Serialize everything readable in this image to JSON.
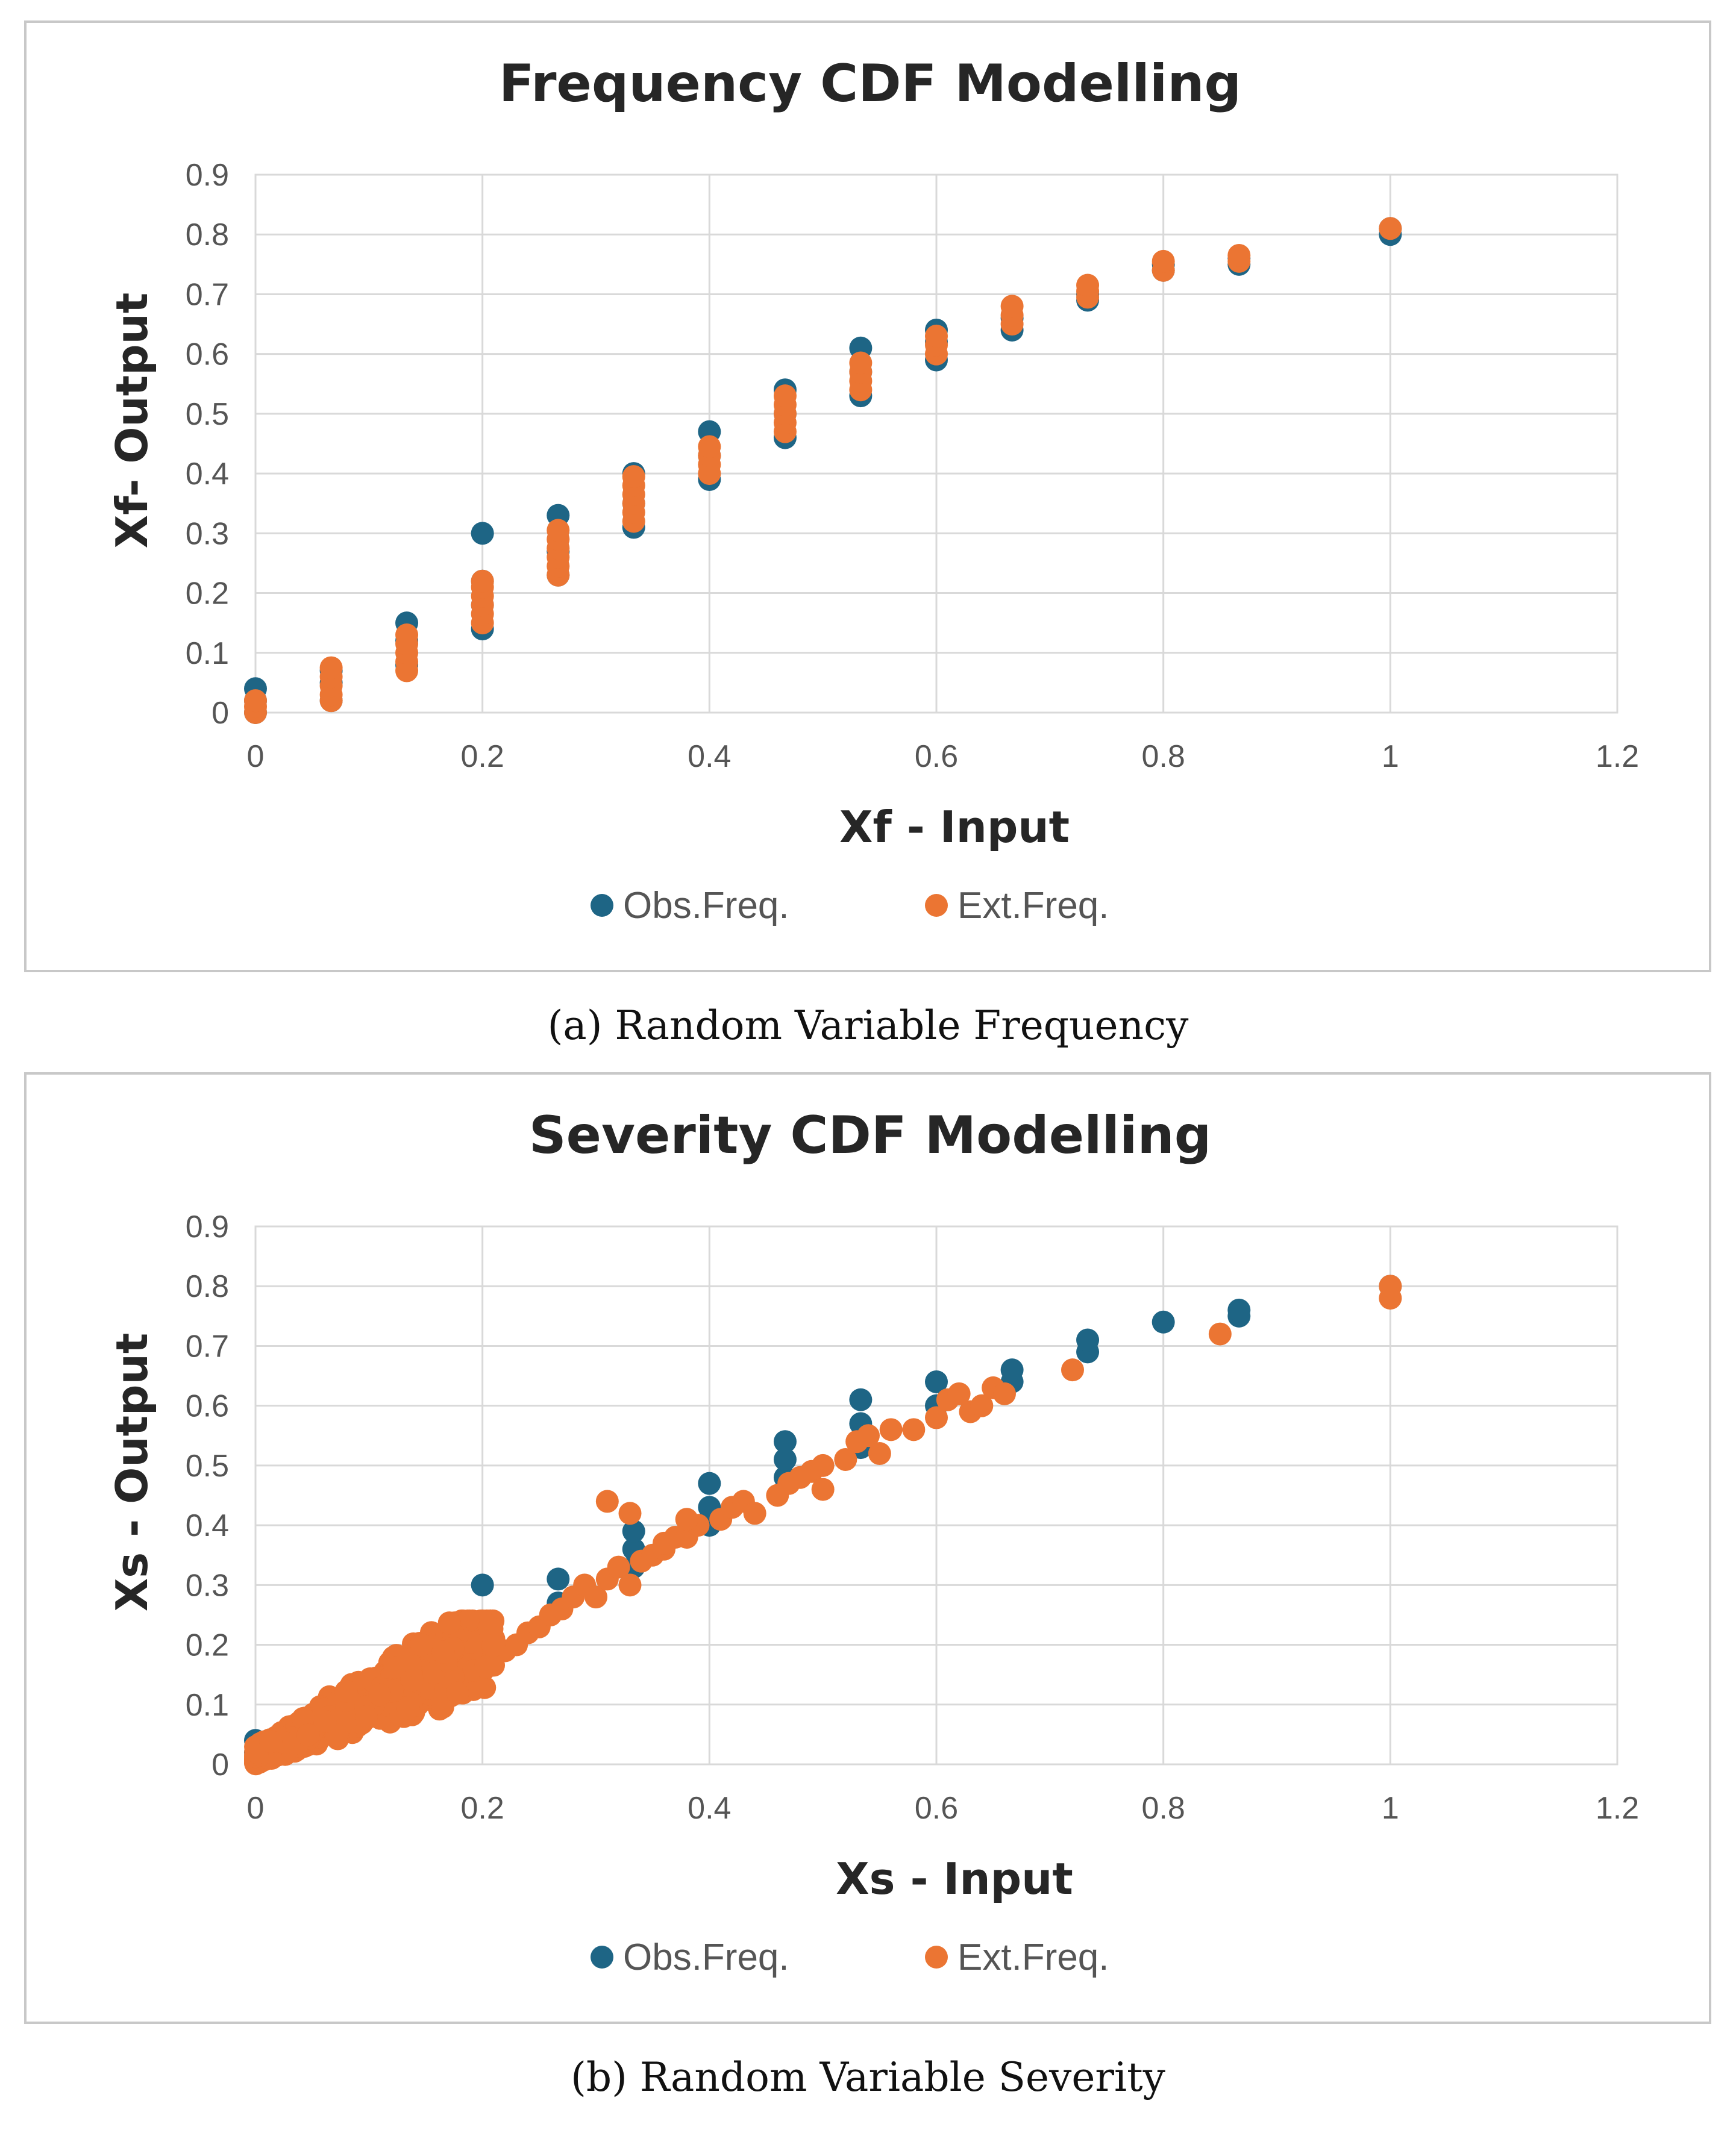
{
  "colors": {
    "obs": "#1e6585",
    "ext": "#eb7533"
  },
  "chart_data": [
    {
      "type": "scatter",
      "title": "Frequency CDF Modelling",
      "xlabel": "Xf - Input",
      "ylabel": "Xf- Output",
      "xlim": [
        0,
        1.2
      ],
      "ylim": [
        0,
        0.9
      ],
      "xticks": [
        "0",
        "0.2",
        "0.4",
        "0.6",
        "0.8",
        "1",
        "1.2"
      ],
      "yticks": [
        "0",
        "0.1",
        "0.2",
        "0.3",
        "0.4",
        "0.5",
        "0.6",
        "0.7",
        "0.8",
        "0.9"
      ],
      "grid": true,
      "legend_position": "bottom",
      "series": [
        {
          "name": "Obs.Freq.",
          "points": [
            [
              0,
              0.0
            ],
            [
              0,
              0.02
            ],
            [
              0,
              0.04
            ],
            [
              0.0667,
              0.02
            ],
            [
              0.0667,
              0.05
            ],
            [
              0.0667,
              0.07
            ],
            [
              0.1333,
              0.08
            ],
            [
              0.1333,
              0.12
            ],
            [
              0.1333,
              0.15
            ],
            [
              0.2,
              0.14
            ],
            [
              0.2,
              0.18
            ],
            [
              0.2,
              0.22
            ],
            [
              0.2,
              0.3
            ],
            [
              0.2667,
              0.23
            ],
            [
              0.2667,
              0.27
            ],
            [
              0.2667,
              0.33
            ],
            [
              0.3333,
              0.31
            ],
            [
              0.3333,
              0.35
            ],
            [
              0.3333,
              0.4
            ],
            [
              0.4,
              0.39
            ],
            [
              0.4,
              0.43
            ],
            [
              0.4,
              0.47
            ],
            [
              0.4667,
              0.46
            ],
            [
              0.4667,
              0.5
            ],
            [
              0.4667,
              0.54
            ],
            [
              0.5333,
              0.53
            ],
            [
              0.5333,
              0.57
            ],
            [
              0.5333,
              0.61
            ],
            [
              0.6,
              0.59
            ],
            [
              0.6,
              0.62
            ],
            [
              0.6,
              0.64
            ],
            [
              0.6667,
              0.64
            ],
            [
              0.6667,
              0.66
            ],
            [
              0.7333,
              0.69
            ],
            [
              0.7333,
              0.7
            ],
            [
              0.8,
              0.74
            ],
            [
              0.8,
              0.75
            ],
            [
              0.8667,
              0.75
            ],
            [
              0.8667,
              0.76
            ],
            [
              1,
              0.8
            ],
            [
              1,
              0.81
            ]
          ]
        },
        {
          "name": "Ext.Freq.",
          "points": [
            [
              0,
              0.0
            ],
            [
              0,
              0.01
            ],
            [
              0,
              0.02
            ],
            [
              0.0667,
              0.02
            ],
            [
              0.0667,
              0.03
            ],
            [
              0.0667,
              0.045
            ],
            [
              0.0667,
              0.06
            ],
            [
              0.0667,
              0.075
            ],
            [
              0.1333,
              0.07
            ],
            [
              0.1333,
              0.085
            ],
            [
              0.1333,
              0.1
            ],
            [
              0.1333,
              0.115
            ],
            [
              0.1333,
              0.13
            ],
            [
              0.2,
              0.15
            ],
            [
              0.2,
              0.165
            ],
            [
              0.2,
              0.18
            ],
            [
              0.2,
              0.195
            ],
            [
              0.2,
              0.21
            ],
            [
              0.2,
              0.22
            ],
            [
              0.2667,
              0.23
            ],
            [
              0.2667,
              0.245
            ],
            [
              0.2667,
              0.26
            ],
            [
              0.2667,
              0.275
            ],
            [
              0.2667,
              0.29
            ],
            [
              0.2667,
              0.305
            ],
            [
              0.3333,
              0.32
            ],
            [
              0.3333,
              0.335
            ],
            [
              0.3333,
              0.35
            ],
            [
              0.3333,
              0.365
            ],
            [
              0.3333,
              0.38
            ],
            [
              0.3333,
              0.395
            ],
            [
              0.4,
              0.4
            ],
            [
              0.4,
              0.415
            ],
            [
              0.4,
              0.43
            ],
            [
              0.4,
              0.445
            ],
            [
              0.4667,
              0.47
            ],
            [
              0.4667,
              0.485
            ],
            [
              0.4667,
              0.5
            ],
            [
              0.4667,
              0.515
            ],
            [
              0.4667,
              0.53
            ],
            [
              0.5333,
              0.54
            ],
            [
              0.5333,
              0.555
            ],
            [
              0.5333,
              0.57
            ],
            [
              0.5333,
              0.585
            ],
            [
              0.6,
              0.6
            ],
            [
              0.6,
              0.615
            ],
            [
              0.6,
              0.63
            ],
            [
              0.6667,
              0.65
            ],
            [
              0.6667,
              0.665
            ],
            [
              0.6667,
              0.68
            ],
            [
              0.7333,
              0.695
            ],
            [
              0.7333,
              0.705
            ],
            [
              0.7333,
              0.715
            ],
            [
              0.8,
              0.74
            ],
            [
              0.8,
              0.755
            ],
            [
              0.8667,
              0.755
            ],
            [
              0.8667,
              0.765
            ],
            [
              1,
              0.81
            ]
          ]
        }
      ]
    },
    {
      "type": "scatter",
      "title": "Severity CDF Modelling",
      "xlabel": "Xs - Input",
      "ylabel": "Xs - Output",
      "xlim": [
        0,
        1.2
      ],
      "ylim": [
        0,
        0.9
      ],
      "xticks": [
        "0",
        "0.2",
        "0.4",
        "0.6",
        "0.8",
        "1",
        "1.2"
      ],
      "yticks": [
        "0",
        "0.1",
        "0.2",
        "0.3",
        "0.4",
        "0.5",
        "0.6",
        "0.7",
        "0.8",
        "0.9"
      ],
      "grid": true,
      "legend_position": "bottom",
      "series": [
        {
          "name": "Obs.Freq.",
          "points": [
            [
              0,
              0.02
            ],
            [
              0,
              0.04
            ],
            [
              0.0667,
              0.05
            ],
            [
              0.0667,
              0.07
            ],
            [
              0.1333,
              0.12
            ],
            [
              0.1333,
              0.15
            ],
            [
              0.2,
              0.18
            ],
            [
              0.2,
              0.22
            ],
            [
              0.2,
              0.3
            ],
            [
              0.2667,
              0.27
            ],
            [
              0.2667,
              0.31
            ],
            [
              0.3333,
              0.33
            ],
            [
              0.3333,
              0.36
            ],
            [
              0.3333,
              0.39
            ],
            [
              0.4,
              0.4
            ],
            [
              0.4,
              0.43
            ],
            [
              0.4,
              0.47
            ],
            [
              0.4667,
              0.48
            ],
            [
              0.4667,
              0.51
            ],
            [
              0.4667,
              0.54
            ],
            [
              0.5333,
              0.53
            ],
            [
              0.5333,
              0.57
            ],
            [
              0.5333,
              0.61
            ],
            [
              0.6,
              0.6
            ],
            [
              0.6,
              0.64
            ],
            [
              0.6667,
              0.64
            ],
            [
              0.6667,
              0.66
            ],
            [
              0.7333,
              0.69
            ],
            [
              0.7333,
              0.71
            ],
            [
              0.8,
              0.74
            ],
            [
              0.8667,
              0.75
            ],
            [
              0.8667,
              0.76
            ],
            [
              1,
              0.8
            ]
          ]
        },
        {
          "name": "Ext.Freq.",
          "points": [
            [
              0.19,
              0.19
            ],
            [
              0.21,
              0.21
            ],
            [
              0.22,
              0.19
            ],
            [
              0.23,
              0.2
            ],
            [
              0.24,
              0.22
            ],
            [
              0.25,
              0.23
            ],
            [
              0.26,
              0.25
            ],
            [
              0.27,
              0.26
            ],
            [
              0.28,
              0.28
            ],
            [
              0.29,
              0.3
            ],
            [
              0.3,
              0.28
            ],
            [
              0.31,
              0.31
            ],
            [
              0.32,
              0.33
            ],
            [
              0.33,
              0.3
            ],
            [
              0.34,
              0.34
            ],
            [
              0.35,
              0.35
            ],
            [
              0.36,
              0.36
            ],
            [
              0.37,
              0.38
            ],
            [
              0.38,
              0.38
            ],
            [
              0.39,
              0.4
            ],
            [
              0.31,
              0.44
            ],
            [
              0.33,
              0.42
            ],
            [
              0.36,
              0.37
            ],
            [
              0.38,
              0.41
            ],
            [
              0.41,
              0.41
            ],
            [
              0.42,
              0.43
            ],
            [
              0.43,
              0.44
            ],
            [
              0.44,
              0.42
            ],
            [
              0.46,
              0.45
            ],
            [
              0.47,
              0.47
            ],
            [
              0.48,
              0.48
            ],
            [
              0.49,
              0.49
            ],
            [
              0.5,
              0.46
            ],
            [
              0.5,
              0.5
            ],
            [
              0.52,
              0.51
            ],
            [
              0.53,
              0.54
            ],
            [
              0.54,
              0.55
            ],
            [
              0.55,
              0.52
            ],
            [
              0.56,
              0.56
            ],
            [
              0.58,
              0.56
            ],
            [
              0.6,
              0.58
            ],
            [
              0.61,
              0.61
            ],
            [
              0.62,
              0.62
            ],
            [
              0.63,
              0.59
            ],
            [
              0.64,
              0.6
            ],
            [
              0.65,
              0.63
            ],
            [
              0.66,
              0.62
            ],
            [
              0.72,
              0.66
            ],
            [
              0.85,
              0.72
            ],
            [
              1,
              0.78
            ],
            [
              1,
              0.8
            ]
          ]
        }
      ]
    }
  ],
  "captions": {
    "a": "(a) Random Variable Frequency",
    "b": "(b) Random Variable Severity"
  }
}
